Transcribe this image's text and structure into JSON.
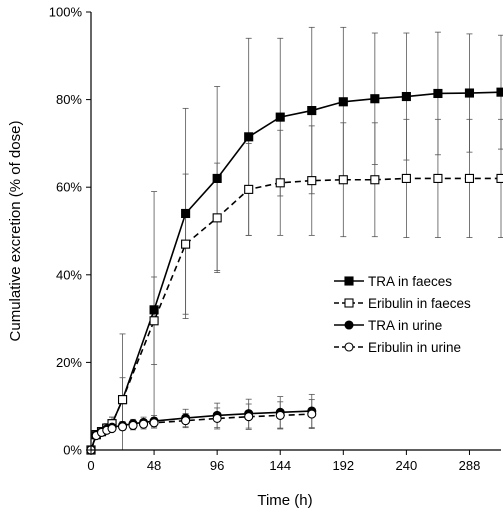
{
  "chart_data": {
    "type": "line",
    "xlabel": "Time (h)",
    "ylabel": "Cumulative excretion (% of dose)",
    "xlim": [
      0,
      312
    ],
    "ylim": [
      0,
      100
    ],
    "x_ticks": [
      0,
      48,
      96,
      144,
      192,
      240,
      288
    ],
    "x_tick_labels": [
      "0",
      "48",
      "96",
      "144",
      "192",
      "240",
      "288"
    ],
    "y_ticks": [
      0,
      20,
      40,
      60,
      80,
      100
    ],
    "y_tick_labels": [
      "0%",
      "20%",
      "40%",
      "60%",
      "80%",
      "100%"
    ],
    "grid": false,
    "legend_position": "right",
    "series": [
      {
        "name": "TRA in faeces",
        "marker": "square-filled",
        "line": "solid",
        "x": [
          0,
          4,
          8,
          12,
          16,
          24,
          48,
          72,
          96,
          120,
          144,
          168,
          192,
          216,
          240,
          264,
          288,
          312
        ],
        "y": [
          0,
          3.5,
          4.2,
          5.0,
          6.0,
          11.5,
          32,
          54,
          62,
          71.5,
          76,
          77.5,
          79.5,
          80.2,
          80.7,
          81.4,
          81.5,
          81.7
        ],
        "error": [
          0,
          0.5,
          0.8,
          1.0,
          1.5,
          15,
          27,
          24,
          21,
          22.5,
          18,
          19,
          17,
          15,
          14.5,
          14,
          13.5,
          13
        ]
      },
      {
        "name": "Eribulin in faeces",
        "marker": "square-open",
        "line": "dashed",
        "x": [
          0,
          4,
          8,
          12,
          16,
          24,
          48,
          72,
          96,
          120,
          144,
          168,
          192,
          216,
          240,
          264,
          288,
          312
        ],
        "y": [
          0,
          3.5,
          4.2,
          5.0,
          6.0,
          11.5,
          29.5,
          47,
          53,
          59.5,
          61,
          61.5,
          61.7,
          61.7,
          62,
          62,
          62,
          62
        ],
        "error": [
          0,
          0.5,
          0.8,
          1.0,
          1.5,
          5,
          10,
          16,
          12.5,
          10.5,
          12,
          12.5,
          13,
          13,
          13.5,
          13.5,
          13.5,
          13.5
        ]
      },
      {
        "name": "TRA in urine",
        "marker": "circle-filled",
        "line": "solid",
        "x": [
          0,
          4,
          8,
          12,
          16,
          24,
          32,
          40,
          48,
          72,
          96,
          120,
          144,
          168
        ],
        "y": [
          0,
          3.5,
          4.2,
          4.8,
          5.2,
          5.6,
          6.0,
          6.3,
          6.6,
          7.3,
          7.9,
          8.3,
          8.6,
          8.9
        ],
        "error": [
          0,
          0.3,
          0.5,
          0.6,
          0.7,
          0.8,
          1.0,
          1.2,
          1.3,
          2.0,
          2.8,
          3.3,
          3.6,
          3.8
        ]
      },
      {
        "name": "Eribulin in urine",
        "marker": "circle-open",
        "line": "dashed",
        "x": [
          0,
          4,
          8,
          12,
          16,
          24,
          32,
          40,
          48,
          72,
          96,
          120,
          144,
          168
        ],
        "y": [
          0,
          3.3,
          4.0,
          4.5,
          4.9,
          5.3,
          5.6,
          5.9,
          6.2,
          6.7,
          7.2,
          7.6,
          7.9,
          8.2
        ],
        "error": [
          0,
          0.3,
          0.5,
          0.6,
          0.7,
          0.8,
          1.0,
          1.1,
          1.2,
          1.6,
          2.4,
          2.9,
          3.1,
          3.3
        ]
      }
    ]
  }
}
